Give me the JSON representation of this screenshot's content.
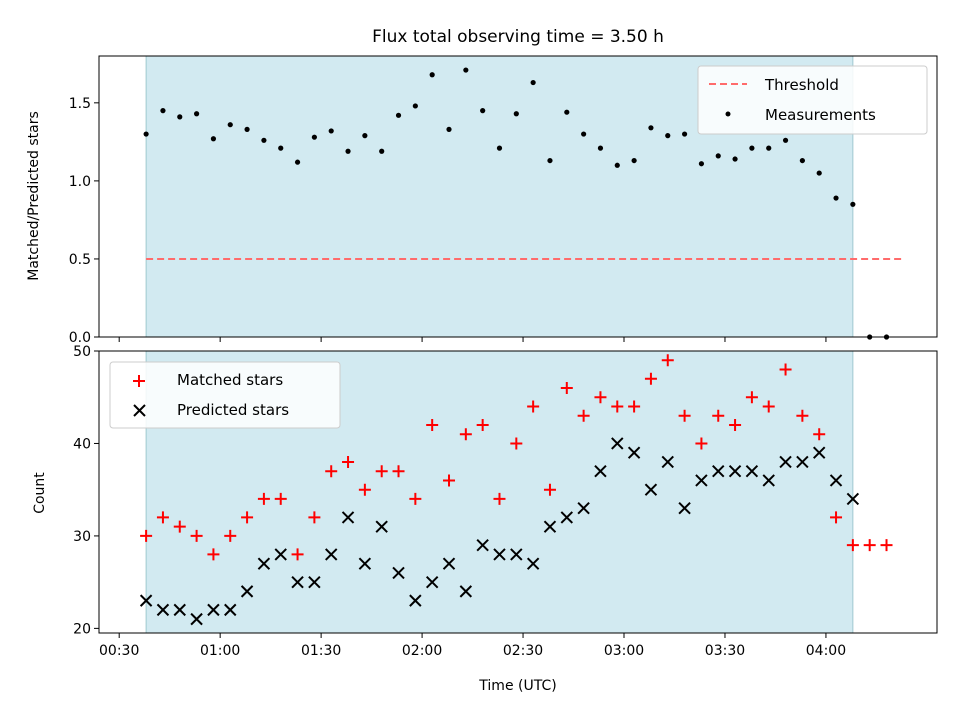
{
  "colors": {
    "shade": "#add8e6",
    "threshold": "#ff6b6b",
    "matched": "#ff0000",
    "predicted": "#000000",
    "measurement": "#000000"
  },
  "chart_data": [
    {
      "type": "scatter",
      "title": "Flux total observing time = 3.50 h",
      "xlabel": "",
      "ylabel": "Matched/Predicted stars",
      "xlim": [
        "00:24",
        "04:33"
      ],
      "ylim": [
        0,
        1.8
      ],
      "yticks": [
        "0.0",
        "0.5",
        "1.0",
        "1.5"
      ],
      "grid": false,
      "legend": "top-right",
      "shaded_interval": [
        "00:38",
        "04:08"
      ],
      "threshold": {
        "name": "Threshold",
        "value": 0.5,
        "x_range": [
          "00:38",
          "04:23"
        ],
        "style": "dashed"
      },
      "series": [
        {
          "name": "Measurements",
          "x": [
            "00:38",
            "00:43",
            "00:48",
            "00:53",
            "00:58",
            "01:03",
            "01:08",
            "01:13",
            "01:18",
            "01:23",
            "01:28",
            "01:33",
            "01:38",
            "01:43",
            "01:48",
            "01:53",
            "01:58",
            "02:03",
            "02:08",
            "02:13",
            "02:18",
            "02:23",
            "02:28",
            "02:33",
            "02:38",
            "02:43",
            "02:48",
            "02:53",
            "02:58",
            "03:03",
            "03:08",
            "03:13",
            "03:18",
            "03:23",
            "03:28",
            "03:33",
            "03:38",
            "03:43",
            "03:48",
            "03:53",
            "03:58",
            "04:03",
            "04:08",
            "04:13",
            "04:18"
          ],
          "y": [
            1.3,
            1.45,
            1.41,
            1.43,
            1.27,
            1.36,
            1.33,
            1.26,
            1.21,
            1.12,
            1.28,
            1.32,
            1.19,
            1.29,
            1.19,
            1.42,
            1.48,
            1.68,
            1.33,
            1.71,
            1.45,
            1.21,
            1.43,
            1.63,
            1.13,
            1.44,
            1.3,
            1.21,
            1.1,
            1.13,
            1.34,
            1.29,
            1.3,
            1.11,
            1.16,
            1.14,
            1.21,
            1.21,
            1.26,
            1.13,
            1.05,
            0.89,
            0.85,
            0.0,
            0.0
          ]
        }
      ]
    },
    {
      "type": "scatter",
      "title": "",
      "xlabel": "Time (UTC)",
      "ylabel": "Count",
      "xlim": [
        "00:24",
        "04:33"
      ],
      "ylim": [
        19.5,
        50
      ],
      "yticks": [
        "20",
        "30",
        "40",
        "50"
      ],
      "xticks": [
        "00:30",
        "01:00",
        "01:30",
        "02:00",
        "02:30",
        "03:00",
        "03:30",
        "04:00"
      ],
      "grid": false,
      "legend": "top-left",
      "shaded_interval": [
        "00:38",
        "04:08"
      ],
      "series": [
        {
          "name": "Matched stars",
          "x": [
            "00:38",
            "00:43",
            "00:48",
            "00:53",
            "00:58",
            "01:03",
            "01:08",
            "01:13",
            "01:18",
            "01:23",
            "01:28",
            "01:33",
            "01:38",
            "01:43",
            "01:48",
            "01:53",
            "01:58",
            "02:03",
            "02:08",
            "02:13",
            "02:18",
            "02:23",
            "02:28",
            "02:33",
            "02:38",
            "02:43",
            "02:48",
            "02:53",
            "02:58",
            "03:03",
            "03:08",
            "03:13",
            "03:18",
            "03:23",
            "03:28",
            "03:33",
            "03:38",
            "03:43",
            "03:48",
            "03:53",
            "03:58",
            "04:03",
            "04:08",
            "04:13",
            "04:18"
          ],
          "y": [
            30,
            32,
            31,
            30,
            28,
            30,
            32,
            34,
            34,
            28,
            32,
            37,
            38,
            35,
            37,
            37,
            34,
            42,
            36,
            41,
            42,
            34,
            40,
            44,
            35,
            46,
            43,
            45,
            44,
            44,
            47,
            49,
            43,
            40,
            43,
            42,
            45,
            44,
            48,
            43,
            41,
            32,
            29,
            29,
            29
          ]
        },
        {
          "name": "Predicted stars",
          "x": [
            "00:38",
            "00:43",
            "00:48",
            "00:53",
            "00:58",
            "01:03",
            "01:08",
            "01:13",
            "01:18",
            "01:23",
            "01:28",
            "01:33",
            "01:38",
            "01:43",
            "01:48",
            "01:53",
            "01:58",
            "02:03",
            "02:08",
            "02:13",
            "02:18",
            "02:23",
            "02:28",
            "02:33",
            "02:38",
            "02:43",
            "02:48",
            "02:53",
            "02:58",
            "03:03",
            "03:08",
            "03:13",
            "03:18",
            "03:23",
            "03:28",
            "03:33",
            "03:38",
            "03:43",
            "03:48",
            "03:53",
            "03:58",
            "04:03",
            "04:08"
          ],
          "y": [
            23,
            22,
            22,
            21,
            22,
            22,
            24,
            27,
            28,
            25,
            25,
            28,
            32,
            27,
            31,
            26,
            23,
            25,
            27,
            24,
            29,
            28,
            28,
            27,
            31,
            32,
            33,
            37,
            40,
            39,
            35,
            38,
            33,
            36,
            37,
            37,
            37,
            36,
            38,
            38,
            39,
            36,
            34
          ]
        }
      ]
    }
  ]
}
